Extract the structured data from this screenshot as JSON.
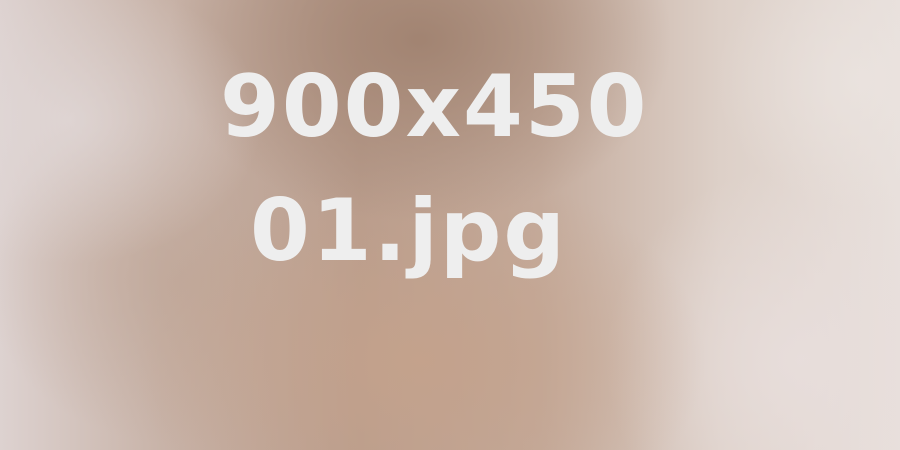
{
  "placeholder": {
    "dimensions_text": "900x450",
    "filename_text": "01.jpg"
  },
  "colors": {
    "text": "#eeeeee",
    "background_mid": "#b89c8c",
    "background_light": "#e8e0dc"
  }
}
